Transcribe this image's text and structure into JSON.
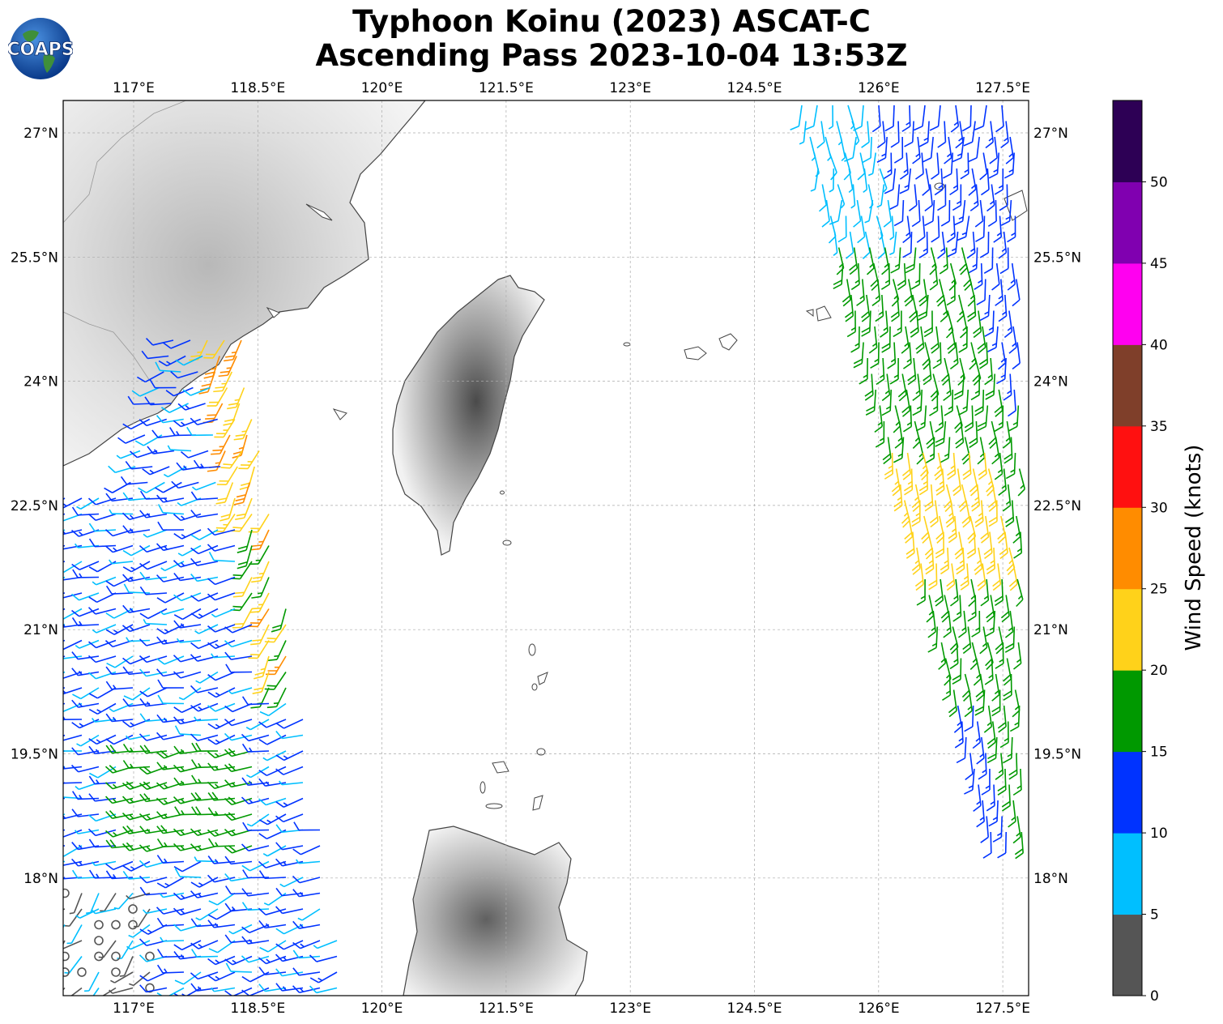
{
  "title": {
    "line1": "Typhoon Koinu (2023) ASCAT-C",
    "line2": "Ascending Pass 2023-10-04 13:53Z"
  },
  "logo": {
    "text": "COAPS"
  },
  "axes": {
    "lon_labels": [
      "117°E",
      "118.5°E",
      "120°E",
      "121.5°E",
      "123°E",
      "124.5°E",
      "126°E",
      "127.5°E"
    ],
    "lat_labels": [
      "27°N",
      "25.5°N",
      "24°N",
      "22.5°N",
      "21°N",
      "19.5°N",
      "18°N"
    ],
    "lon_range": [
      116.6,
      128.0
    ],
    "lat_range": [
      16.2,
      27.0
    ]
  },
  "colorbar": {
    "label": "Wind Speed (knots)",
    "ticks": [
      "0",
      "5",
      "10",
      "15",
      "20",
      "25",
      "30",
      "35",
      "40",
      "45",
      "50"
    ],
    "bins": [
      {
        "range": [
          0,
          5
        ],
        "color": "#555555"
      },
      {
        "range": [
          5,
          10
        ],
        "color": "#00bfff"
      },
      {
        "range": [
          10,
          15
        ],
        "color": "#0033ff"
      },
      {
        "range": [
          15,
          20
        ],
        "color": "#009900"
      },
      {
        "range": [
          20,
          25
        ],
        "color": "#ffd21a"
      },
      {
        "range": [
          25,
          30
        ],
        "color": "#ff8c00"
      },
      {
        "range": [
          30,
          35
        ],
        "color": "#ff1010"
      },
      {
        "range": [
          35,
          40
        ],
        "color": "#7f3f2a"
      },
      {
        "range": [
          40,
          45
        ],
        "color": "#ff00f0"
      },
      {
        "range": [
          45,
          50
        ],
        "color": "#8000b0"
      },
      {
        "range": [
          50,
          55
        ],
        "color": "#2d0055"
      }
    ]
  },
  "colors": {
    "land_border": "#333333",
    "grid": "#aaaaaa"
  }
}
